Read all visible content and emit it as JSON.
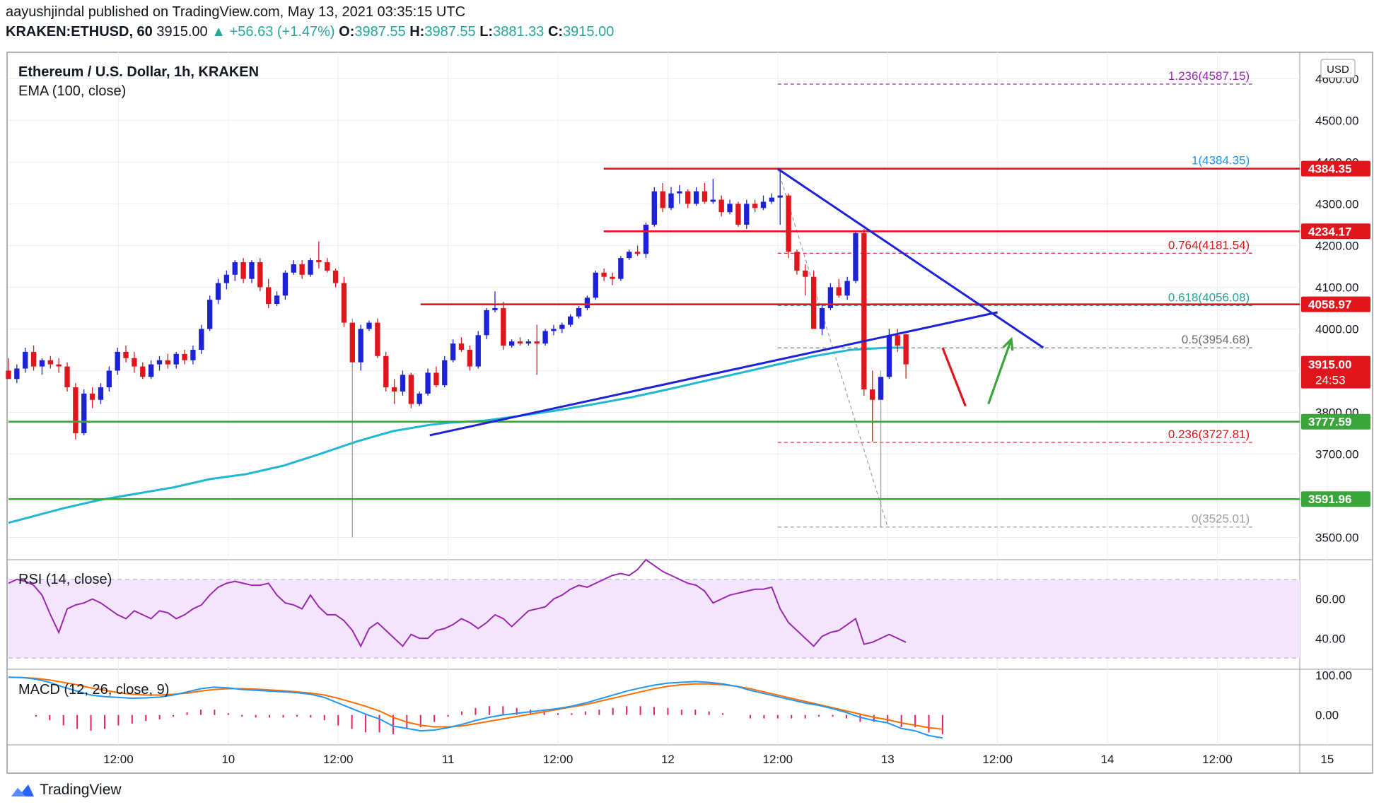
{
  "header": {
    "publisher_line": "aayushjindal published on TradingView.com, May 13, 2021 03:35:15 UTC",
    "symbol": "KRAKEN:ETHUSD, 60",
    "last": "3915.00",
    "change_arrow": "▲",
    "change": "+56.63 (+1.47%)",
    "o_label": "O:",
    "o": "3987.55",
    "h_label": "H:",
    "h": "3987.55",
    "l_label": "L:",
    "l": "3881.33",
    "c_label": "C:",
    "c": "3915.00"
  },
  "pane_labels": {
    "main_title": "Ethereum / U.S. Dollar, 1h, KRAKEN",
    "ema_label": "EMA (100, close)",
    "rsi_label": "RSI (14, close)",
    "macd_label": "MACD (12, 26, close, 9)",
    "currency": "USD"
  },
  "brand": {
    "name": "TradingView",
    "icon": "tradingview-logo-icon"
  },
  "colors": {
    "up": "#1e22d6",
    "down": "#e0161c",
    "ema": "#1fb8d0",
    "trend": "#1e22d6",
    "resistance": "#e0161c",
    "support": "#3aa63a",
    "fib_red": "#e0161c",
    "fib_purple": "#9c27b0",
    "fib_blue": "#2196f3",
    "fib_green": "#26a69a",
    "rsi": "#9c27b0",
    "rsi_band": "#f3e5fb",
    "macd": "#2196f3",
    "signal": "#ff6d00",
    "hist": "#e91e63"
  },
  "chart_data": {
    "type": "candlestick",
    "title": "Ethereum / U.S. Dollar, 1h, KRAKEN",
    "ylim": [
      3450,
      4660
    ],
    "y_ticks": [
      3500,
      3600,
      3700,
      3800,
      3900,
      4000,
      4100,
      4200,
      4300,
      4400,
      4500,
      4600
    ],
    "y_tick_labels": [
      "3500.00",
      "3600.00",
      "3700.00",
      "3800.00",
      "3900.00",
      "4000.00",
      "4100.00",
      "4200.00",
      "4300.00",
      "4400.00",
      "4500.00",
      "4600.00"
    ],
    "x_range_hours": [
      -12,
      129
    ],
    "x_ticks": [
      {
        "t": 0,
        "label": "12:00"
      },
      {
        "t": 12,
        "label": "10"
      },
      {
        "t": 24,
        "label": "12:00"
      },
      {
        "t": 36,
        "label": "11"
      },
      {
        "t": 48,
        "label": "12:00"
      },
      {
        "t": 60,
        "label": "12"
      },
      {
        "t": 72,
        "label": "12:00"
      },
      {
        "t": 84,
        "label": "13"
      },
      {
        "t": 96,
        "label": "12:00"
      },
      {
        "t": 108,
        "label": "14"
      },
      {
        "t": 120,
        "label": "12:00"
      },
      {
        "t": 132,
        "label": "15"
      }
    ],
    "candles": [
      [
        3900,
        3930,
        3885,
        3880
      ],
      [
        3880,
        3915,
        3870,
        3905
      ],
      [
        3905,
        3955,
        3895,
        3945
      ],
      [
        3945,
        3960,
        3900,
        3910
      ],
      [
        3910,
        3930,
        3890,
        3925
      ],
      [
        3925,
        3935,
        3905,
        3915
      ],
      [
        3915,
        3930,
        3895,
        3910
      ],
      [
        3910,
        3920,
        3850,
        3860
      ],
      [
        3860,
        3870,
        3735,
        3750
      ],
      [
        3750,
        3855,
        3745,
        3845
      ],
      [
        3845,
        3860,
        3810,
        3830
      ],
      [
        3830,
        3870,
        3820,
        3860
      ],
      [
        3860,
        3910,
        3850,
        3900
      ],
      [
        3900,
        3955,
        3890,
        3945
      ],
      [
        3945,
        3960,
        3920,
        3930
      ],
      [
        3930,
        3945,
        3895,
        3910
      ],
      [
        3910,
        3920,
        3880,
        3885
      ],
      [
        3885,
        3925,
        3880,
        3915
      ],
      [
        3915,
        3935,
        3900,
        3925
      ],
      [
        3925,
        3940,
        3905,
        3915
      ],
      [
        3915,
        3945,
        3905,
        3940
      ],
      [
        3940,
        3950,
        3915,
        3925
      ],
      [
        3925,
        3960,
        3915,
        3950
      ],
      [
        3950,
        4010,
        3940,
        4000
      ],
      [
        4000,
        4080,
        3995,
        4070
      ],
      [
        4070,
        4120,
        4060,
        4110
      ],
      [
        4110,
        4140,
        4095,
        4130
      ],
      [
        4130,
        4165,
        4115,
        4160
      ],
      [
        4160,
        4170,
        4110,
        4120
      ],
      [
        4120,
        4165,
        4110,
        4160
      ],
      [
        4160,
        4170,
        4090,
        4100
      ],
      [
        4100,
        4120,
        4050,
        4060
      ],
      [
        4060,
        4090,
        4055,
        4080
      ],
      [
        4080,
        4140,
        4070,
        4135
      ],
      [
        4135,
        4165,
        4130,
        4155
      ],
      [
        4155,
        4165,
        4120,
        4130
      ],
      [
        4130,
        4170,
        4125,
        4165
      ],
      [
        4165,
        4210,
        4145,
        4160
      ],
      [
        4160,
        4170,
        4135,
        4140
      ],
      [
        4140,
        4145,
        4100,
        4110
      ],
      [
        4110,
        4125,
        4005,
        4015
      ],
      [
        4015,
        4025,
        3500,
        3920
      ],
      [
        3920,
        4010,
        3900,
        4000
      ],
      [
        4000,
        4020,
        3995,
        4015
      ],
      [
        4015,
        4025,
        3930,
        3935
      ],
      [
        3935,
        3945,
        3850,
        3860
      ],
      [
        3860,
        3880,
        3820,
        3850
      ],
      [
        3850,
        3900,
        3840,
        3890
      ],
      [
        3890,
        3895,
        3810,
        3820
      ],
      [
        3820,
        3850,
        3815,
        3845
      ],
      [
        3845,
        3905,
        3840,
        3895
      ],
      [
        3895,
        3910,
        3860,
        3865
      ],
      [
        3865,
        3935,
        3860,
        3925
      ],
      [
        3925,
        3975,
        3920,
        3965
      ],
      [
        3965,
        3980,
        3945,
        3950
      ],
      [
        3950,
        3960,
        3900,
        3910
      ],
      [
        3910,
        3995,
        3905,
        3985
      ],
      [
        3985,
        4050,
        3975,
        4045
      ],
      [
        4045,
        4090,
        4040,
        4050
      ],
      [
        4050,
        4065,
        3950,
        3960
      ],
      [
        3960,
        3975,
        3955,
        3970
      ],
      [
        3970,
        3980,
        3960,
        3965
      ],
      [
        3965,
        3975,
        3960,
        3970
      ],
      [
        3970,
        4010,
        3890,
        3965
      ],
      [
        3965,
        4000,
        3960,
        3995
      ],
      [
        3995,
        4010,
        3985,
        4000
      ],
      [
        4000,
        4015,
        3990,
        4010
      ],
      [
        4010,
        4035,
        4005,
        4030
      ],
      [
        4030,
        4055,
        4025,
        4050
      ],
      [
        4050,
        4080,
        4045,
        4075
      ],
      [
        4075,
        4140,
        4070,
        4135
      ],
      [
        4135,
        4145,
        4115,
        4125
      ],
      [
        4125,
        4135,
        4105,
        4120
      ],
      [
        4120,
        4175,
        4115,
        4170
      ],
      [
        4170,
        4190,
        4165,
        4185
      ],
      [
        4185,
        4200,
        4175,
        4180
      ],
      [
        4180,
        4255,
        4170,
        4250
      ],
      [
        4250,
        4340,
        4245,
        4330
      ],
      [
        4330,
        4350,
        4280,
        4290
      ],
      [
        4290,
        4340,
        4285,
        4325
      ],
      [
        4325,
        4345,
        4300,
        4330
      ],
      [
        4330,
        4335,
        4290,
        4300
      ],
      [
        4300,
        4340,
        4295,
        4330
      ],
      [
        4330,
        4350,
        4300,
        4305
      ],
      [
        4305,
        4360,
        4300,
        4310
      ],
      [
        4310,
        4320,
        4270,
        4280
      ],
      [
        4280,
        4310,
        4275,
        4300
      ],
      [
        4300,
        4305,
        4245,
        4250
      ],
      [
        4250,
        4310,
        4240,
        4300
      ],
      [
        4300,
        4310,
        4280,
        4290
      ],
      [
        4290,
        4320,
        4285,
        4305
      ],
      [
        4305,
        4325,
        4300,
        4315
      ],
      [
        4315,
        4384,
        4250,
        4320
      ],
      [
        4320,
        4325,
        4170,
        4185
      ],
      [
        4185,
        4190,
        4130,
        4140
      ],
      [
        4140,
        4155,
        4080,
        4125
      ],
      [
        4125,
        4140,
        4000,
        4000
      ],
      [
        4000,
        4060,
        3985,
        4050
      ],
      [
        4050,
        4110,
        4045,
        4100
      ],
      [
        4100,
        4120,
        4075,
        4080
      ],
      [
        4080,
        4125,
        4070,
        4115
      ],
      [
        4115,
        4235,
        4110,
        4230
      ],
      [
        4230,
        4240,
        3840,
        3855
      ],
      [
        3855,
        3900,
        3730,
        3830
      ],
      [
        3830,
        3900,
        3525,
        3885
      ],
      [
        3885,
        4000,
        3880,
        3985
      ],
      [
        3985,
        4000,
        3945,
        3960
      ],
      [
        3987,
        3988,
        3881,
        3915
      ]
    ],
    "ema100": [
      [
        -12,
        3535
      ],
      [
        -6,
        3570
      ],
      [
        -2,
        3590
      ],
      [
        2,
        3605
      ],
      [
        6,
        3620
      ],
      [
        10,
        3640
      ],
      [
        14,
        3652
      ],
      [
        18,
        3672
      ],
      [
        22,
        3700
      ],
      [
        26,
        3730
      ],
      [
        30,
        3755
      ],
      [
        34,
        3770
      ],
      [
        36,
        3775
      ],
      [
        40,
        3780
      ],
      [
        44,
        3792
      ],
      [
        48,
        3805
      ],
      [
        52,
        3820
      ],
      [
        56,
        3836
      ],
      [
        60,
        3855
      ],
      [
        64,
        3875
      ],
      [
        68,
        3895
      ],
      [
        72,
        3915
      ],
      [
        76,
        3935
      ],
      [
        80,
        3950
      ],
      [
        84,
        3955
      ],
      [
        86,
        3955
      ]
    ],
    "horizontal_lines": [
      {
        "name": "resistance-4384",
        "value": 4384.35,
        "label": "4384.35",
        "color": "#e0161c",
        "t_start": 53
      },
      {
        "name": "resistance-4234",
        "value": 4234.17,
        "label": "4234.17",
        "color": "#e0161c",
        "t_start": 53
      },
      {
        "name": "resistance-4058",
        "value": 4058.97,
        "label": "4058.97",
        "color": "#e0161c",
        "t_start": 33
      },
      {
        "name": "support-3777",
        "value": 3777.59,
        "label": "3777.59",
        "color": "#3aa63a",
        "t_start": -12
      },
      {
        "name": "support-3591",
        "value": 3591.96,
        "label": "3591.96",
        "color": "#3aa63a",
        "t_start": -12
      }
    ],
    "price_tag": {
      "value": 3915.0,
      "label": "3915.00",
      "countdown": "24:53"
    },
    "fibonacci": [
      {
        "ratio_label": "1.236(4587.15)",
        "value": 4587.15,
        "color": "#9c27b0",
        "dashed": true
      },
      {
        "ratio_label": "1(4384.35)",
        "value": 4384.35,
        "color": "#2196f3",
        "dashed": false
      },
      {
        "ratio_label": "0.764(4181.54)",
        "value": 4181.54,
        "color": "#e0161c",
        "dashed": true
      },
      {
        "ratio_label": "0.618(4056.08)",
        "value": 4056.08,
        "color": "#26a69a",
        "dashed": true
      },
      {
        "ratio_label": "0.5(3954.68)",
        "value": 3954.68,
        "color": "#6d6d6d",
        "dashed": true
      },
      {
        "ratio_label": "0.236(3727.81)",
        "value": 3727.81,
        "color": "#e0161c",
        "dashed": true
      },
      {
        "ratio_label": "0(3525.01)",
        "value": 3525.01,
        "color": "#9e9e9e",
        "dashed": true
      }
    ],
    "fib_t_range": [
      72,
      124
    ],
    "trendlines": [
      {
        "name": "rising-support-trendline",
        "from": [
          34,
          3745
        ],
        "to": [
          96,
          4040
        ]
      },
      {
        "name": "falling-resistance-trendline",
        "from": [
          72,
          4384
        ],
        "to": [
          101,
          3955
        ]
      }
    ],
    "arrows": [
      {
        "name": "red-down-arrow",
        "from": [
          90,
          3955
        ],
        "to": [
          92.5,
          3815
        ],
        "color": "#e0161c"
      },
      {
        "name": "green-up-arrow",
        "from": [
          95,
          3820
        ],
        "to": [
          97.5,
          3975
        ],
        "color": "#3aa63a"
      }
    ],
    "rsi": {
      "label": "RSI (14, close)",
      "ylim": [
        25,
        80
      ],
      "band": [
        30,
        70
      ],
      "y_ticks": [
        40,
        60
      ],
      "y_tick_labels": [
        "40.00",
        "60.00"
      ],
      "values": [
        68,
        70,
        69,
        67,
        62,
        52,
        43,
        55,
        57,
        58,
        60,
        58,
        55,
        52,
        50,
        54,
        52,
        50,
        54,
        53,
        50,
        52,
        55,
        57,
        62,
        66,
        68,
        69,
        68,
        67,
        67,
        68,
        62,
        58,
        57,
        55,
        62,
        56,
        52,
        52,
        49,
        44,
        36,
        45,
        48,
        44,
        40,
        36,
        42,
        40,
        40,
        44,
        45,
        47,
        50,
        48,
        45,
        48,
        52,
        50,
        46,
        50,
        54,
        55,
        56,
        60,
        62,
        65,
        67,
        66,
        68,
        70,
        72,
        73,
        72,
        75,
        80,
        77,
        74,
        72,
        70,
        68,
        67,
        64,
        58,
        60,
        62,
        63,
        64,
        65,
        65,
        66,
        55,
        48,
        44,
        40,
        36,
        41,
        43,
        44,
        47,
        50,
        37,
        38,
        40,
        42,
        40,
        38
      ]
    },
    "macd": {
      "label": "MACD (12, 26, close, 9)",
      "ylim": [
        -70,
        115
      ],
      "y_ticks": [
        0,
        100
      ],
      "y_tick_labels": [
        "0.00",
        "100.00"
      ],
      "macd": [
        95,
        94,
        90,
        82,
        70,
        60,
        50,
        46,
        44,
        42,
        43,
        45,
        50,
        58,
        66,
        70,
        68,
        64,
        62,
        60,
        58,
        56,
        52,
        44,
        30,
        16,
        2,
        -10,
        -28,
        -34,
        -40,
        -38,
        -32,
        -24,
        -14,
        -6,
        0,
        4,
        8,
        12,
        16,
        22,
        30,
        40,
        50,
        60,
        68,
        75,
        80,
        82,
        84,
        82,
        78,
        72,
        62,
        54,
        46,
        38,
        30,
        24,
        16,
        6,
        -6,
        -14,
        -20,
        -34,
        -40,
        -52,
        -58
      ],
      "signal": [
        95,
        94,
        92,
        88,
        82,
        76,
        68,
        62,
        56,
        52,
        50,
        50,
        52,
        55,
        60,
        64,
        66,
        66,
        65,
        63,
        61,
        58,
        55,
        50,
        42,
        32,
        22,
        10,
        -6,
        -18,
        -26,
        -30,
        -30,
        -28,
        -22,
        -16,
        -10,
        -4,
        2,
        8,
        14,
        20,
        26,
        34,
        42,
        50,
        58,
        66,
        72,
        76,
        78,
        78,
        76,
        72,
        66,
        58,
        50,
        42,
        34,
        26,
        18,
        10,
        2,
        -6,
        -12,
        -20,
        -26,
        -32,
        -36
      ],
      "t_start": -12,
      "t_step": 1.5
    }
  }
}
